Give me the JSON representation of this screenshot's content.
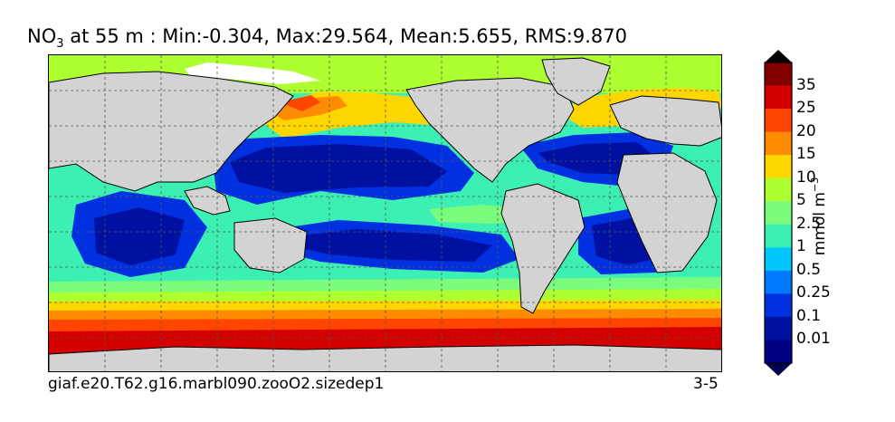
{
  "title": {
    "var_main": "NO",
    "var_sub": "3",
    "rest": " at 55 m : Min:-0.304, Max:29.564, Mean:5.655, RMS:9.870"
  },
  "footer": {
    "case_name": "giaf.e20.T62.g16.marbl090.zooO2.sizedep1",
    "years": "3-5"
  },
  "colorbar": {
    "units_base": "mmol m",
    "units_exp": "−3",
    "labels": [
      "35",
      "25",
      "20",
      "15",
      "10",
      "5",
      "2.5",
      "1",
      "0.5",
      "0.25",
      "0.1",
      "0.01"
    ],
    "colors": [
      "#800000",
      "#d40000",
      "#ff4500",
      "#ff8c00",
      "#ffd700",
      "#adff2f",
      "#7cfc7c",
      "#3cf0b4",
      "#00c8ff",
      "#0078ff",
      "#0030e0",
      "#0010a0",
      "#000080"
    ],
    "under_color": "#000050",
    "over_color": "#000000"
  },
  "colors": {
    "land": "#d3d3d3",
    "no_data": "#ffffff",
    "grid": "#555555"
  }
}
